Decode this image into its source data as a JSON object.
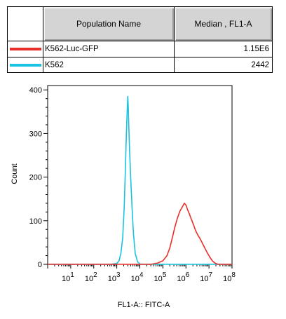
{
  "legend": {
    "headers": {
      "population": "Population Name",
      "median": "Median , FL1-A"
    },
    "rows": [
      {
        "name": "K562-Luc-GFP",
        "median": "1.15E6",
        "color": "#e8302a"
      },
      {
        "name": "K562",
        "median": "2442",
        "color": "#19c2e0"
      }
    ]
  },
  "chart_data": {
    "type": "area",
    "xlabel": "FL1-A:: FITC-A",
    "ylabel": "Count",
    "x_scale": "log",
    "xlim": [
      1,
      100000000
    ],
    "ylim": [
      0,
      410
    ],
    "yticks": [
      0,
      100,
      200,
      300,
      400
    ],
    "ytick_labels": [
      "0",
      "100",
      "200",
      "300",
      "400"
    ],
    "xtick_labels": [
      {
        "base": "10",
        "exp": "1"
      },
      {
        "base": "10",
        "exp": "2"
      },
      {
        "base": "10",
        "exp": "3"
      },
      {
        "base": "10",
        "exp": "4"
      },
      {
        "base": "10",
        "exp": "5"
      },
      {
        "base": "10",
        "exp": "6"
      },
      {
        "base": "10",
        "exp": "7"
      },
      {
        "base": "10",
        "exp": "8"
      }
    ],
    "series": [
      {
        "name": "K562",
        "color": "#19c2e0",
        "points": [
          [
            1,
            0
          ],
          [
            100,
            0
          ],
          [
            500,
            0
          ],
          [
            1000,
            2
          ],
          [
            1250,
            8
          ],
          [
            1500,
            25
          ],
          [
            1800,
            60
          ],
          [
            2100,
            130
          ],
          [
            2400,
            230
          ],
          [
            2600,
            300
          ],
          [
            2800,
            345
          ],
          [
            3000,
            385
          ],
          [
            3150,
            360
          ],
          [
            3300,
            320
          ],
          [
            3600,
            260
          ],
          [
            4000,
            200
          ],
          [
            4600,
            130
          ],
          [
            5300,
            70
          ],
          [
            6300,
            25
          ],
          [
            8000,
            6
          ],
          [
            10000,
            1
          ],
          [
            12000,
            0
          ],
          [
            100000000,
            0
          ]
        ]
      },
      {
        "name": "K562-Luc-GFP",
        "color": "#e8302a",
        "points": [
          [
            1,
            0
          ],
          [
            10000,
            0
          ],
          [
            30000,
            0
          ],
          [
            60000,
            3
          ],
          [
            100000,
            8
          ],
          [
            150000,
            20
          ],
          [
            200000,
            38
          ],
          [
            260000,
            62
          ],
          [
            330000,
            85
          ],
          [
            420000,
            105
          ],
          [
            550000,
            122
          ],
          [
            700000,
            132
          ],
          [
            850000,
            140
          ],
          [
            1000000,
            136
          ],
          [
            1200000,
            124
          ],
          [
            1400000,
            116
          ],
          [
            1700000,
            104
          ],
          [
            2100000,
            92
          ],
          [
            2600000,
            78
          ],
          [
            3200000,
            68
          ],
          [
            4000000,
            60
          ],
          [
            5000000,
            50
          ],
          [
            6500000,
            38
          ],
          [
            8500000,
            26
          ],
          [
            11000000,
            16
          ],
          [
            14000000,
            8
          ],
          [
            18000000,
            3
          ],
          [
            25000000,
            0
          ],
          [
            100000000,
            0
          ]
        ]
      }
    ]
  }
}
